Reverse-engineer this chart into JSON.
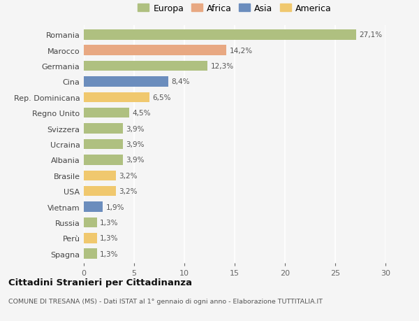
{
  "countries": [
    "Romania",
    "Marocco",
    "Germania",
    "Cina",
    "Rep. Dominicana",
    "Regno Unito",
    "Svizzera",
    "Ucraina",
    "Albania",
    "Brasile",
    "USA",
    "Vietnam",
    "Russia",
    "Perù",
    "Spagna"
  ],
  "values": [
    27.1,
    14.2,
    12.3,
    8.4,
    6.5,
    4.5,
    3.9,
    3.9,
    3.9,
    3.2,
    3.2,
    1.9,
    1.3,
    1.3,
    1.3
  ],
  "labels": [
    "27,1%",
    "14,2%",
    "12,3%",
    "8,4%",
    "6,5%",
    "4,5%",
    "3,9%",
    "3,9%",
    "3,9%",
    "3,2%",
    "3,2%",
    "1,9%",
    "1,3%",
    "1,3%",
    "1,3%"
  ],
  "continents": [
    "Europa",
    "Africa",
    "Europa",
    "Asia",
    "America",
    "Europa",
    "Europa",
    "Europa",
    "Europa",
    "America",
    "America",
    "Asia",
    "Europa",
    "America",
    "Europa"
  ],
  "colors": {
    "Europa": "#afc080",
    "Africa": "#e8a882",
    "Asia": "#6b8dbd",
    "America": "#f0c86e"
  },
  "legend_order": [
    "Europa",
    "Africa",
    "Asia",
    "America"
  ],
  "legend_colors": [
    "#afc080",
    "#e8a882",
    "#6b8dbd",
    "#f0c86e"
  ],
  "xlim": [
    0,
    30
  ],
  "xticks": [
    0,
    5,
    10,
    15,
    20,
    25,
    30
  ],
  "title": "Cittadini Stranieri per Cittadinanza",
  "subtitle": "COMUNE DI TRESANA (MS) - Dati ISTAT al 1° gennaio di ogni anno - Elaborazione TUTTITALIA.IT",
  "background_color": "#f5f5f5",
  "grid_color": "#ffffff",
  "bar_height": 0.65
}
